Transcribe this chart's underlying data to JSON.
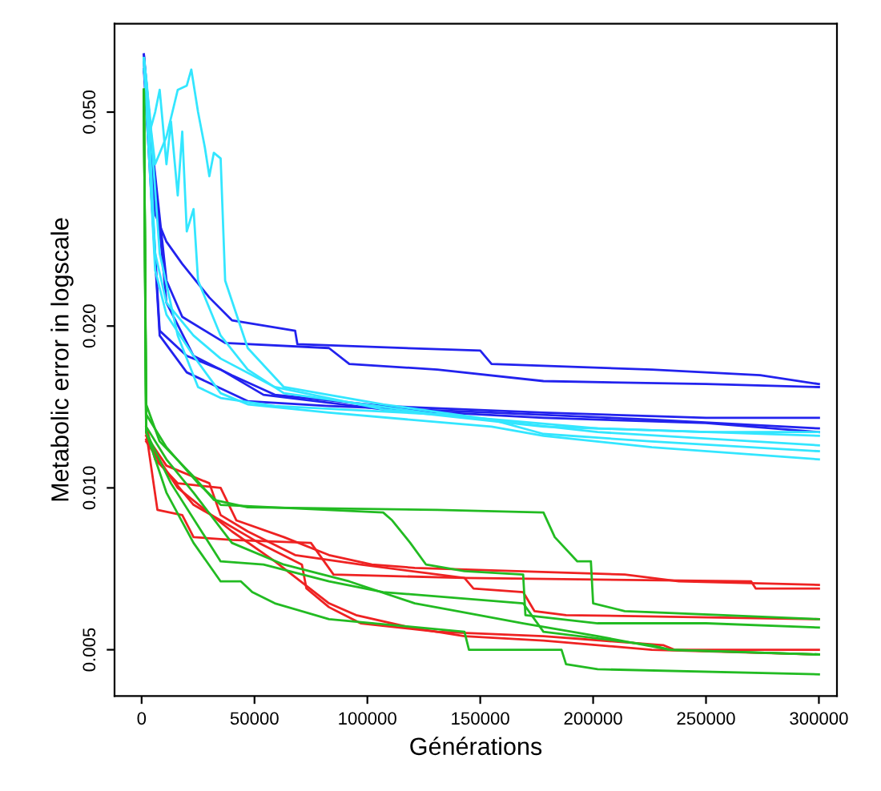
{
  "chart_data": {
    "type": "line",
    "xlabel": "Générations",
    "ylabel": "Metabolic error in logscale",
    "log": "y",
    "grid": false,
    "legend": false,
    "marker": "none",
    "line_style": "solid",
    "xlim": [
      -12000,
      308000
    ],
    "xticks": [
      0,
      50000,
      100000,
      150000,
      200000,
      250000,
      300000
    ],
    "ylim": [
      0.0041,
      0.073
    ],
    "yticks": [
      {
        "value": 0.005,
        "label": "0.005"
      },
      {
        "value": 0.01,
        "label": "0.010"
      },
      {
        "value": 0.02,
        "label": "0.020"
      },
      {
        "value": 0.05,
        "label": "0.050"
      }
    ],
    "series": [
      {
        "color": "#2222ee",
        "x": [
          1000,
          6000,
          11000,
          18000,
          30000,
          40000,
          68000,
          69000,
          150000,
          155000,
          226000,
          274000,
          300000
        ],
        "values": [
          0.064,
          0.0323,
          0.0287,
          0.0261,
          0.0226,
          0.0205,
          0.0196,
          0.0185,
          0.018,
          0.017,
          0.0166,
          0.0162,
          0.0156
        ]
      },
      {
        "color": "#2222ee",
        "x": [
          1000,
          11000,
          18000,
          37000,
          83000,
          92000,
          131000,
          178000,
          250000,
          300000
        ],
        "values": [
          0.06,
          0.0243,
          0.0208,
          0.0186,
          0.0182,
          0.017,
          0.0166,
          0.0158,
          0.0156,
          0.0154
        ]
      },
      {
        "color": "#2222ee",
        "x": [
          1000,
          6000,
          11000,
          23000,
          40000,
          59000,
          107000,
          178000,
          250000,
          300000
        ],
        "values": [
          0.064,
          0.0373,
          0.0221,
          0.0176,
          0.0162,
          0.0149,
          0.0142,
          0.0138,
          0.0135,
          0.0135
        ]
      },
      {
        "color": "#2222ee",
        "x": [
          1000,
          8000,
          20000,
          47000,
          83000,
          155000,
          226000,
          300000
        ],
        "values": [
          0.06,
          0.0192,
          0.0164,
          0.0145,
          0.0142,
          0.0138,
          0.0134,
          0.0129
        ]
      },
      {
        "color": "#2222ee",
        "x": [
          1000,
          8000,
          20000,
          35000,
          54000,
          107000,
          178000,
          250000,
          300000
        ],
        "values": [
          0.062,
          0.0196,
          0.0176,
          0.0166,
          0.0149,
          0.014,
          0.0135,
          0.0132,
          0.0127
        ]
      },
      {
        "color": "#33e6ff",
        "x": [
          1000,
          6000,
          11000,
          16000,
          20000,
          22000,
          25000,
          28000,
          30000,
          32000,
          35000,
          37000,
          47000,
          63000,
          107000,
          155000,
          178000,
          226000,
          300000
        ],
        "values": [
          0.06,
          0.04,
          0.045,
          0.055,
          0.056,
          0.06,
          0.05,
          0.043,
          0.038,
          0.042,
          0.041,
          0.0243,
          0.0182,
          0.0154,
          0.0143,
          0.0134,
          0.0126,
          0.0122,
          0.0117
        ]
      },
      {
        "color": "#33e6ff",
        "x": [
          1000,
          3000,
          6000,
          8000,
          11000,
          13000,
          16000,
          18000,
          20000,
          23000,
          25000,
          35000,
          47000,
          63000,
          131000,
          202000,
          300000
        ],
        "values": [
          0.063,
          0.045,
          0.05,
          0.055,
          0.04,
          0.048,
          0.035,
          0.046,
          0.03,
          0.033,
          0.0243,
          0.0192,
          0.0166,
          0.015,
          0.0137,
          0.0129,
          0.0125
        ]
      },
      {
        "color": "#33e6ff",
        "x": [
          1000,
          2400,
          6000,
          11000,
          23000,
          35000,
          59000,
          107000,
          178000,
          250000,
          300000
        ],
        "values": [
          0.063,
          0.056,
          0.0273,
          0.0221,
          0.0192,
          0.0174,
          0.0154,
          0.014,
          0.013,
          0.0127,
          0.0127
        ]
      },
      {
        "color": "#33e6ff",
        "x": [
          1000,
          6000,
          11000,
          23000,
          35000,
          47000,
          83000,
          155000,
          178000,
          226000,
          300000
        ],
        "values": [
          0.062,
          0.0254,
          0.021,
          0.0176,
          0.015,
          0.0143,
          0.0138,
          0.013,
          0.0125,
          0.0119,
          0.0113
        ]
      },
      {
        "color": "#33e6ff",
        "x": [
          1000,
          3600,
          8000,
          16000,
          25000,
          35000,
          59000,
          131000,
          202000,
          300000
        ],
        "values": [
          0.063,
          0.0496,
          0.0273,
          0.0192,
          0.0154,
          0.0147,
          0.0142,
          0.0137,
          0.0127,
          0.012
        ]
      },
      {
        "color": "#ee2222",
        "x": [
          2000,
          6000,
          16000,
          35000,
          42000,
          63000,
          83000,
          102000,
          121000,
          214000,
          238000,
          300000
        ],
        "values": [
          0.013,
          0.0113,
          0.0102,
          0.01,
          0.0087,
          0.0081,
          0.0075,
          0.0072,
          0.0071,
          0.0069,
          0.0067,
          0.0066
        ]
      },
      {
        "color": "#ee2222",
        "x": [
          2000,
          7000,
          18000,
          23000,
          40000,
          75000,
          85000,
          143000,
          270000,
          272000,
          300000
        ],
        "values": [
          0.0127,
          0.0091,
          0.0089,
          0.0081,
          0.008,
          0.0079,
          0.0069,
          0.0068,
          0.0067,
          0.0065,
          0.0065
        ]
      },
      {
        "color": "#ee2222",
        "x": [
          2000,
          11000,
          30000,
          35000,
          47000,
          68000,
          97000,
          143000,
          147000,
          169000,
          174000,
          188000,
          300000
        ],
        "values": [
          0.0125,
          0.011,
          0.0102,
          0.0089,
          0.0083,
          0.0075,
          0.0072,
          0.0068,
          0.0065,
          0.0064,
          0.0059,
          0.0058,
          0.0057
        ]
      },
      {
        "color": "#ee2222",
        "x": [
          2000,
          11000,
          23000,
          35000,
          52000,
          71000,
          73000,
          83000,
          97000,
          131000,
          178000,
          231000,
          236000,
          300000
        ],
        "values": [
          0.0122,
          0.0107,
          0.0093,
          0.0087,
          0.0079,
          0.0072,
          0.0065,
          0.006,
          0.0056,
          0.0054,
          0.0053,
          0.0051,
          0.005,
          0.005
        ]
      },
      {
        "color": "#ee2222",
        "x": [
          2000,
          16000,
          40000,
          59000,
          83000,
          95000,
          119000,
          143000,
          178000,
          226000,
          300000
        ],
        "values": [
          0.0123,
          0.01,
          0.0083,
          0.0073,
          0.0061,
          0.0058,
          0.0055,
          0.0053,
          0.0052,
          0.005,
          0.0049
        ]
      },
      {
        "color": "#22bb22",
        "x": [
          1000,
          2000,
          8000,
          23000,
          32000,
          47000,
          131000,
          178000,
          183000,
          193000,
          199000,
          200000,
          214000,
          300000
        ],
        "values": [
          0.055,
          0.0143,
          0.0122,
          0.0105,
          0.0095,
          0.0092,
          0.0091,
          0.009,
          0.0081,
          0.0073,
          0.0073,
          0.0061,
          0.0059,
          0.0057
        ]
      },
      {
        "color": "#22bb22",
        "x": [
          1000,
          2000,
          11000,
          25000,
          35000,
          107000,
          111000,
          119000,
          126000,
          143000,
          169000,
          170000,
          202000,
          250000,
          300000
        ],
        "values": [
          0.055,
          0.0137,
          0.0119,
          0.0102,
          0.0093,
          0.009,
          0.0087,
          0.0079,
          0.0072,
          0.007,
          0.0069,
          0.0058,
          0.0056,
          0.0056,
          0.0055
        ]
      },
      {
        "color": "#22bb22",
        "x": [
          1000,
          2000,
          11000,
          23000,
          40000,
          63000,
          92000,
          121000,
          169000,
          202000,
          234000,
          300000
        ],
        "values": [
          0.055,
          0.013,
          0.0113,
          0.0098,
          0.0079,
          0.0072,
          0.0067,
          0.0061,
          0.0056,
          0.0053,
          0.005,
          0.0049
        ]
      },
      {
        "color": "#22bb22",
        "x": [
          1000,
          2000,
          13000,
          35000,
          54000,
          83000,
          107000,
          169000,
          178000,
          226000,
          234000,
          300000
        ],
        "values": [
          0.055,
          0.0127,
          0.0102,
          0.0073,
          0.0072,
          0.0067,
          0.0064,
          0.0061,
          0.0054,
          0.0051,
          0.005,
          0.0049
        ]
      },
      {
        "color": "#22bb22",
        "x": [
          1000,
          2000,
          11000,
          23000,
          35000,
          44000,
          49000,
          59000,
          83000,
          143000,
          145000,
          186000,
          188000,
          202000,
          300000
        ],
        "values": [
          0.055,
          0.0127,
          0.0098,
          0.0079,
          0.0067,
          0.0067,
          0.0064,
          0.0061,
          0.0057,
          0.0054,
          0.005,
          0.005,
          0.0047,
          0.0046,
          0.0045
        ]
      }
    ]
  }
}
